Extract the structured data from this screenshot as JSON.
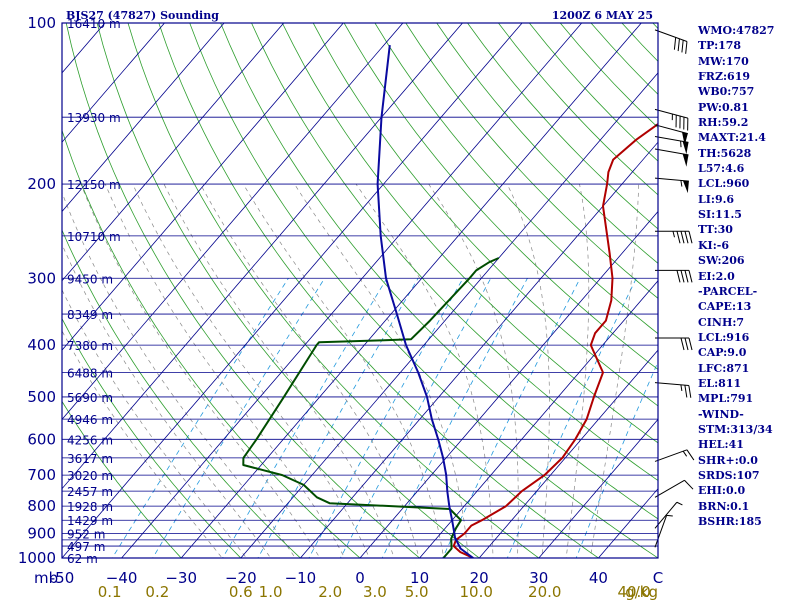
{
  "header": {
    "station": "BJS27 (47827) Sounding",
    "time": "1200Z  6 MAY 25"
  },
  "colors": {
    "frame": "#00008b",
    "isobar": "#00008b",
    "isotherm": "#00008b",
    "dry_adiabat": "#2e9e2e",
    "moist_adiabat": "#888888",
    "mixing_ratio": "#2299dd",
    "temperature": "#b00000",
    "dewpoint": "#004d00",
    "parcel": "#0a0aa0",
    "temp_labels": "#00008b",
    "mixing_ratio_labels": "#8b7500",
    "wind_barbs": "#000000"
  },
  "chart_data": {
    "type": "skew-t log-p",
    "pressure_range_hpa": [
      1000,
      100
    ],
    "temperature_range_c": [
      -50,
      50
    ],
    "pressure_labels": [
      "100",
      "200",
      "300",
      "400",
      "500",
      "600",
      "700",
      "800",
      "900",
      "1000"
    ],
    "pressure_label_values": [
      100,
      200,
      300,
      400,
      500,
      600,
      700,
      800,
      900,
      1000
    ],
    "isobars_hpa": [
      100,
      150,
      200,
      250,
      300,
      350,
      400,
      450,
      500,
      550,
      600,
      650,
      700,
      750,
      800,
      850,
      900,
      925,
      950,
      1000
    ],
    "temperature_labels": [
      "-50",
      "−40",
      "−30",
      "−20",
      "−10",
      "0",
      "10",
      "20",
      "30",
      "40",
      "C"
    ],
    "temperature_label_values": [
      -50,
      -40,
      -30,
      -20,
      -10,
      0,
      10,
      20,
      30,
      40,
      50
    ],
    "pressure_unit_label": "mb",
    "mixing_ratio_labels": [
      "0.1",
      "0.2",
      "0.6",
      "1.0",
      "2.0",
      "3.0",
      "5.0",
      "10.0",
      "20.0",
      "40.0",
      "g/kg"
    ],
    "mixing_ratio_label_x": [
      -42,
      -34,
      -20,
      -15,
      -5,
      2.5,
      9.5,
      19.5,
      31,
      46,
      50
    ],
    "height_labels": [
      {
        "text": "16410 m",
        "p": 100
      },
      {
        "text": "13930 m",
        "p": 150
      },
      {
        "text": "12150 m",
        "p": 200
      },
      {
        "text": "10710 m",
        "p": 250
      },
      {
        "text": "9450 m",
        "p": 300
      },
      {
        "text": "8349 m",
        "p": 350
      },
      {
        "text": "7380 m",
        "p": 400
      },
      {
        "text": "6488 m",
        "p": 450
      },
      {
        "text": "5690 m",
        "p": 500
      },
      {
        "text": "4946 m",
        "p": 550
      },
      {
        "text": "4256 m",
        "p": 600
      },
      {
        "text": "3617 m",
        "p": 650
      },
      {
        "text": "3020 m",
        "p": 700
      },
      {
        "text": "2457 m",
        "p": 750
      },
      {
        "text": "1928 m",
        "p": 800
      },
      {
        "text": "1429 m",
        "p": 850
      },
      {
        "text": "952 m",
        "p": 900
      },
      {
        "text": "497 m",
        "p": 950
      },
      {
        "text": "62 m",
        "p": 1000
      }
    ],
    "series": [
      {
        "name": "temperature",
        "points": [
          [
            1000,
            19
          ],
          [
            975,
            16
          ],
          [
            950,
            14
          ],
          [
            925,
            13.5
          ],
          [
            900,
            14
          ],
          [
            870,
            14
          ],
          [
            850,
            15
          ],
          [
            800,
            17
          ],
          [
            750,
            17.5
          ],
          [
            700,
            19
          ],
          [
            650,
            19.5
          ],
          [
            600,
            19
          ],
          [
            550,
            18
          ],
          [
            500,
            16
          ],
          [
            450,
            14
          ],
          [
            400,
            8
          ],
          [
            380,
            7
          ],
          [
            360,
            7
          ],
          [
            330,
            5
          ],
          [
            300,
            2
          ],
          [
            270,
            -2
          ],
          [
            250,
            -5
          ],
          [
            220,
            -10
          ],
          [
            200,
            -12.5
          ],
          [
            190,
            -14
          ],
          [
            180,
            -15
          ],
          [
            165,
            -14
          ],
          [
            150,
            -12
          ],
          [
            140,
            -12.5
          ],
          [
            125,
            -12
          ],
          [
            110,
            -11.5
          ],
          [
            101,
            -11
          ]
        ]
      },
      {
        "name": "dewpoint",
        "points": [
          [
            1000,
            14
          ],
          [
            960,
            14
          ],
          [
            920,
            12.5
          ],
          [
            880,
            11.8
          ],
          [
            850,
            11.5
          ],
          [
            810,
            8
          ],
          [
            790,
            -13
          ],
          [
            770,
            -16
          ],
          [
            730,
            -20
          ],
          [
            700,
            -25
          ],
          [
            670,
            -33
          ],
          [
            650,
            -34
          ],
          [
            600,
            -34.5
          ],
          [
            500,
            -36
          ],
          [
            400,
            -38
          ],
          [
            395,
            -38
          ],
          [
            392,
            -28
          ],
          [
            390,
            -23
          ],
          [
            360,
            -22.5
          ],
          [
            300,
            -22
          ],
          [
            290,
            -22
          ],
          [
            280,
            -21
          ],
          [
            275,
            -20
          ]
        ]
      },
      {
        "name": "parcel",
        "points": [
          [
            1000,
            19
          ],
          [
            960,
            15.5
          ],
          [
            916,
            13
          ],
          [
            900,
            12.3
          ],
          [
            850,
            10
          ],
          [
            800,
            7.5
          ],
          [
            750,
            5
          ],
          [
            700,
            2.5
          ],
          [
            650,
            -0.5
          ],
          [
            600,
            -4
          ],
          [
            550,
            -8
          ],
          [
            500,
            -12
          ],
          [
            450,
            -17
          ],
          [
            400,
            -23
          ],
          [
            350,
            -29
          ],
          [
            300,
            -36
          ],
          [
            250,
            -43
          ],
          [
            200,
            -51
          ],
          [
            150,
            -60
          ],
          [
            110,
            -69
          ]
        ]
      }
    ],
    "wind_barbs": [
      {
        "p": 103,
        "dir": 290,
        "spd": 40
      },
      {
        "p": 145,
        "dir": 285,
        "spd": 45
      },
      {
        "p": 155,
        "dir": 285,
        "spd": 50
      },
      {
        "p": 163,
        "dir": 280,
        "spd": 55
      },
      {
        "p": 172,
        "dir": 280,
        "spd": 50
      },
      {
        "p": 195,
        "dir": 275,
        "spd": 55
      },
      {
        "p": 245,
        "dir": 270,
        "spd": 45
      },
      {
        "p": 290,
        "dir": 270,
        "spd": 40
      },
      {
        "p": 388,
        "dir": 270,
        "spd": 30
      },
      {
        "p": 470,
        "dir": 275,
        "spd": 25
      },
      {
        "p": 660,
        "dir": 250,
        "spd": 15
      },
      {
        "p": 770,
        "dir": 240,
        "spd": 10
      },
      {
        "p": 880,
        "dir": 220,
        "spd": 5
      },
      {
        "p": 955,
        "dir": 200,
        "spd": 5
      }
    ]
  },
  "indices": [
    {
      "label": "WMO:47827"
    },
    {
      "label": "TP:178"
    },
    {
      "label": "MW:170"
    },
    {
      "label": "FRZ:619"
    },
    {
      "label": "WB0:757"
    },
    {
      "label": "PW:0.81"
    },
    {
      "label": "RH:59.2"
    },
    {
      "label": "MAXT:21.4"
    },
    {
      "label": "TH:5628"
    },
    {
      "label": "L57:4.6"
    },
    {
      "label": "LCL:960"
    },
    {
      "label": "LI:9.6"
    },
    {
      "label": "SI:11.5"
    },
    {
      "label": "TT:30"
    },
    {
      "label": "KI:-6"
    },
    {
      "label": "SW:206"
    },
    {
      "label": "EI:2.0"
    },
    {
      "label": "-PARCEL-"
    },
    {
      "label": "CAPE:13"
    },
    {
      "label": "CINH:7"
    },
    {
      "label": "LCL:916"
    },
    {
      "label": "CAP:9.0"
    },
    {
      "label": "LFC:871"
    },
    {
      "label": "EL:811"
    },
    {
      "label": "MPL:791"
    },
    {
      "label": "-WIND-"
    },
    {
      "label": "STM:313/34"
    },
    {
      "label": "HEL:41"
    },
    {
      "label": "SHR+:0.0"
    },
    {
      "label": "SRDS:107"
    },
    {
      "label": "EHI:0.0"
    },
    {
      "label": "BRN:0.1"
    },
    {
      "label": "BSHR:185"
    }
  ]
}
